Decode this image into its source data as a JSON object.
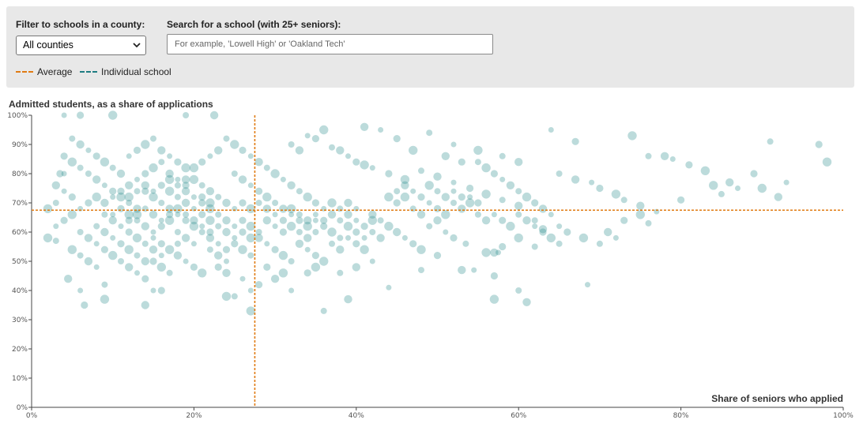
{
  "filters": {
    "county_label": "Filter to schools in a county:",
    "county_selected": "All counties",
    "search_label": "Search for a school (with 25+ seniors):",
    "search_placeholder": "For example, 'Lowell High' or 'Oakland Tech'",
    "search_value": ""
  },
  "legend": {
    "average": "Average",
    "individual": "Individual school"
  },
  "colors": {
    "average": "#e07b13",
    "individual": "#1e7c82",
    "dot": "#2e8f8f"
  },
  "chart_data": {
    "type": "scatter",
    "ylabel": "Admitted students, as a share of applications",
    "xlabel": "Share of seniors who applied",
    "xlim": [
      0,
      100
    ],
    "ylim": [
      0,
      100
    ],
    "x_ticks": [
      "0%",
      "20%",
      "40%",
      "60%",
      "80%",
      "100%"
    ],
    "y_ticks": [
      "0%",
      "10%",
      "20%",
      "30%",
      "40%",
      "50%",
      "60%",
      "70%",
      "80%",
      "90%",
      "100%"
    ],
    "average_x": 27.5,
    "average_y": 67.5,
    "points": [
      [
        4,
        100
      ],
      [
        6,
        100
      ],
      [
        10,
        100
      ],
      [
        19,
        100
      ],
      [
        22.5,
        100
      ],
      [
        4,
        80
      ],
      [
        3.5,
        80
      ],
      [
        2,
        58
      ],
      [
        3,
        57
      ],
      [
        4.5,
        44
      ],
      [
        6,
        40
      ],
      [
        6.5,
        35
      ],
      [
        9,
        37
      ],
      [
        9,
        42
      ],
      [
        14,
        35
      ],
      [
        15,
        40
      ],
      [
        16,
        40
      ],
      [
        27,
        33
      ],
      [
        36,
        33
      ],
      [
        39,
        37
      ],
      [
        44,
        41
      ],
      [
        57,
        45
      ],
      [
        57,
        37
      ],
      [
        60,
        40
      ],
      [
        61,
        36
      ],
      [
        68.5,
        42
      ],
      [
        29,
        48
      ],
      [
        31,
        46
      ],
      [
        48,
        47
      ],
      [
        53,
        47
      ],
      [
        54.5,
        47
      ],
      [
        50,
        52
      ],
      [
        56,
        53
      ],
      [
        53.5,
        56
      ],
      [
        57,
        53
      ],
      [
        57.5,
        53
      ],
      [
        58,
        55
      ],
      [
        60,
        58
      ],
      [
        62,
        55
      ],
      [
        41,
        96
      ],
      [
        43,
        95
      ],
      [
        45,
        92
      ],
      [
        47,
        88
      ],
      [
        49,
        94
      ],
      [
        51,
        86
      ],
      [
        52,
        90
      ],
      [
        53,
        84
      ],
      [
        55,
        88
      ],
      [
        58,
        86
      ],
      [
        60,
        84
      ],
      [
        42,
        82
      ],
      [
        44,
        80
      ],
      [
        46,
        78
      ],
      [
        48,
        81
      ],
      [
        50,
        79
      ],
      [
        52,
        77
      ],
      [
        54,
        75
      ],
      [
        56,
        73
      ],
      [
        58,
        71
      ],
      [
        60,
        69
      ],
      [
        34,
        93
      ],
      [
        35,
        92
      ],
      [
        36,
        95
      ],
      [
        37,
        89
      ],
      [
        38,
        88
      ],
      [
        39,
        86
      ],
      [
        40,
        84
      ],
      [
        41,
        83
      ],
      [
        32,
        90
      ],
      [
        33,
        88
      ],
      [
        64,
        95
      ],
      [
        67,
        91
      ],
      [
        74,
        93
      ],
      [
        76,
        86
      ],
      [
        78,
        86
      ],
      [
        79,
        85
      ],
      [
        81,
        83
      ],
      [
        83,
        81
      ],
      [
        65,
        80
      ],
      [
        67,
        78
      ],
      [
        69,
        77
      ],
      [
        70,
        75
      ],
      [
        72,
        73
      ],
      [
        73,
        71
      ],
      [
        75,
        69
      ],
      [
        77,
        67
      ],
      [
        80,
        71
      ],
      [
        84,
        76
      ],
      [
        85,
        73
      ],
      [
        86,
        77
      ],
      [
        87,
        75
      ],
      [
        89,
        80
      ],
      [
        90,
        75
      ],
      [
        91,
        91
      ],
      [
        92,
        72
      ],
      [
        93,
        77
      ],
      [
        97,
        90
      ],
      [
        98,
        84
      ],
      [
        62,
        64
      ],
      [
        63,
        61
      ],
      [
        65,
        62
      ],
      [
        66,
        60
      ],
      [
        68,
        58
      ],
      [
        70,
        56
      ],
      [
        71,
        60
      ],
      [
        72,
        58
      ],
      [
        73,
        64
      ],
      [
        75,
        66
      ],
      [
        76,
        63
      ],
      [
        63,
        68
      ],
      [
        64,
        66
      ],
      [
        62,
        70
      ],
      [
        61,
        72
      ],
      [
        60,
        74
      ],
      [
        59,
        76
      ],
      [
        58,
        78
      ],
      [
        57,
        80
      ],
      [
        56,
        82
      ],
      [
        55,
        84
      ],
      [
        45,
        60
      ],
      [
        46,
        58
      ],
      [
        47,
        56
      ],
      [
        48,
        54
      ],
      [
        49,
        62
      ],
      [
        50,
        64
      ],
      [
        51,
        60
      ],
      [
        52,
        58
      ],
      [
        44,
        62
      ],
      [
        43,
        64
      ],
      [
        42,
        66
      ],
      [
        41,
        58
      ],
      [
        40,
        60
      ],
      [
        39,
        62
      ],
      [
        38,
        64
      ],
      [
        37,
        66
      ],
      [
        36,
        68
      ],
      [
        35,
        70
      ],
      [
        34,
        72
      ],
      [
        33,
        74
      ],
      [
        32,
        76
      ],
      [
        31,
        78
      ],
      [
        45,
        70
      ],
      [
        46,
        72
      ],
      [
        47,
        68
      ],
      [
        48,
        66
      ],
      [
        49,
        70
      ],
      [
        50,
        68
      ],
      [
        51,
        66
      ],
      [
        52,
        70
      ],
      [
        53,
        68
      ],
      [
        54,
        72
      ],
      [
        55,
        70
      ],
      [
        30,
        80
      ],
      [
        29,
        82
      ],
      [
        28,
        84
      ],
      [
        27,
        86
      ],
      [
        26,
        88
      ],
      [
        25,
        90
      ],
      [
        24,
        92
      ],
      [
        23,
        88
      ],
      [
        22,
        86
      ],
      [
        21,
        84
      ],
      [
        20,
        82
      ],
      [
        5,
        92
      ],
      [
        6,
        90
      ],
      [
        7,
        88
      ],
      [
        8,
        86
      ],
      [
        9,
        84
      ],
      [
        10,
        82
      ],
      [
        11,
        80
      ],
      [
        12,
        86
      ],
      [
        13,
        88
      ],
      [
        14,
        90
      ],
      [
        15,
        92
      ],
      [
        16,
        88
      ],
      [
        17,
        86
      ],
      [
        18,
        84
      ],
      [
        19,
        82
      ],
      [
        7,
        80
      ],
      [
        8,
        78
      ],
      [
        9,
        76
      ],
      [
        10,
        74
      ],
      [
        11,
        72
      ],
      [
        12,
        70
      ],
      [
        13,
        68
      ],
      [
        3,
        62
      ],
      [
        4,
        64
      ],
      [
        5,
        66
      ],
      [
        6,
        60
      ],
      [
        7,
        58
      ],
      [
        8,
        56
      ],
      [
        9,
        54
      ],
      [
        10,
        52
      ],
      [
        11,
        50
      ],
      [
        12,
        48
      ],
      [
        13,
        46
      ],
      [
        14,
        44
      ],
      [
        5,
        54
      ],
      [
        6,
        52
      ],
      [
        7,
        50
      ],
      [
        8,
        48
      ],
      [
        15,
        50
      ],
      [
        16,
        48
      ],
      [
        17,
        46
      ],
      [
        18,
        52
      ],
      [
        19,
        50
      ],
      [
        20,
        48
      ],
      [
        21,
        46
      ],
      [
        22,
        54
      ],
      [
        23,
        52
      ],
      [
        24,
        50
      ],
      [
        25,
        56
      ],
      [
        26,
        54
      ],
      [
        27,
        52
      ],
      [
        28,
        58
      ],
      [
        29,
        56
      ],
      [
        30,
        54
      ],
      [
        31,
        52
      ],
      [
        32,
        50
      ],
      [
        33,
        56
      ],
      [
        34,
        54
      ],
      [
        35,
        52
      ],
      [
        36,
        50
      ],
      [
        37,
        56
      ],
      [
        38,
        54
      ],
      [
        39,
        58
      ],
      [
        40,
        56
      ],
      [
        41,
        54
      ],
      [
        42,
        60
      ],
      [
        43,
        58
      ],
      [
        6,
        68
      ],
      [
        7,
        70
      ],
      [
        8,
        72
      ],
      [
        9,
        66
      ],
      [
        10,
        64
      ],
      [
        11,
        62
      ],
      [
        12,
        60
      ],
      [
        13,
        58
      ],
      [
        14,
        56
      ],
      [
        15,
        54
      ],
      [
        16,
        52
      ],
      [
        14,
        74
      ],
      [
        15,
        72
      ],
      [
        16,
        70
      ],
      [
        17,
        68
      ],
      [
        18,
        66
      ],
      [
        19,
        64
      ],
      [
        20,
        62
      ],
      [
        21,
        60
      ],
      [
        22,
        58
      ],
      [
        23,
        56
      ],
      [
        24,
        54
      ],
      [
        17,
        78
      ],
      [
        18,
        76
      ],
      [
        19,
        74
      ],
      [
        20,
        72
      ],
      [
        21,
        70
      ],
      [
        22,
        68
      ],
      [
        23,
        66
      ],
      [
        24,
        64
      ],
      [
        25,
        62
      ],
      [
        26,
        60
      ],
      [
        27,
        58
      ],
      [
        25,
        80
      ],
      [
        26,
        78
      ],
      [
        27,
        76
      ],
      [
        28,
        74
      ],
      [
        29,
        72
      ],
      [
        30,
        70
      ],
      [
        31,
        68
      ],
      [
        32,
        66
      ],
      [
        33,
        64
      ],
      [
        34,
        62
      ],
      [
        35,
        60
      ],
      [
        12,
        76
      ],
      [
        13,
        78
      ],
      [
        14,
        80
      ],
      [
        15,
        82
      ],
      [
        16,
        84
      ],
      [
        17,
        80
      ],
      [
        18,
        78
      ],
      [
        19,
        76
      ],
      [
        20,
        78
      ],
      [
        21,
        76
      ],
      [
        22,
        74
      ],
      [
        10,
        66
      ],
      [
        11,
        68
      ],
      [
        12,
        66
      ],
      [
        13,
        64
      ],
      [
        14,
        62
      ],
      [
        15,
        60
      ],
      [
        16,
        62
      ],
      [
        17,
        64
      ],
      [
        18,
        60
      ],
      [
        19,
        58
      ],
      [
        20,
        56
      ],
      [
        21,
        66
      ],
      [
        22,
        64
      ],
      [
        23,
        62
      ],
      [
        24,
        60
      ],
      [
        25,
        58
      ],
      [
        26,
        64
      ],
      [
        27,
        62
      ],
      [
        28,
        60
      ],
      [
        29,
        64
      ],
      [
        30,
        62
      ],
      [
        31,
        60
      ],
      [
        32,
        62
      ],
      [
        33,
        60
      ],
      [
        34,
        58
      ],
      [
        35,
        64
      ],
      [
        36,
        62
      ],
      [
        37,
        60
      ],
      [
        38,
        58
      ],
      [
        39,
        66
      ],
      [
        40,
        64
      ],
      [
        41,
        62
      ],
      [
        42,
        64
      ],
      [
        8,
        62
      ],
      [
        9,
        60
      ],
      [
        10,
        58
      ],
      [
        11,
        56
      ],
      [
        12,
        54
      ],
      [
        13,
        52
      ],
      [
        14,
        50
      ],
      [
        15,
        58
      ],
      [
        16,
        56
      ],
      [
        17,
        54
      ],
      [
        18,
        56
      ],
      [
        19,
        70
      ],
      [
        20,
        68
      ],
      [
        21,
        72
      ],
      [
        22,
        70
      ],
      [
        23,
        72
      ],
      [
        24,
        70
      ],
      [
        25,
        68
      ],
      [
        26,
        70
      ],
      [
        27,
        68
      ],
      [
        28,
        70
      ],
      [
        29,
        68
      ],
      [
        30,
        66
      ],
      [
        31,
        64
      ],
      [
        32,
        68
      ],
      [
        33,
        66
      ],
      [
        34,
        64
      ],
      [
        35,
        66
      ],
      [
        36,
        64
      ],
      [
        37,
        70
      ],
      [
        38,
        68
      ],
      [
        39,
        70
      ],
      [
        40,
        68
      ],
      [
        12,
        64
      ],
      [
        13,
        66
      ],
      [
        14,
        68
      ],
      [
        15,
        66
      ],
      [
        16,
        64
      ],
      [
        17,
        66
      ],
      [
        18,
        68
      ],
      [
        19,
        66
      ],
      [
        20,
        64
      ],
      [
        21,
        62
      ],
      [
        22,
        60
      ],
      [
        44,
        72
      ],
      [
        45,
        74
      ],
      [
        46,
        76
      ],
      [
        47,
        74
      ],
      [
        48,
        72
      ],
      [
        49,
        76
      ],
      [
        50,
        74
      ],
      [
        51,
        72
      ],
      [
        52,
        74
      ],
      [
        53,
        72
      ],
      [
        54,
        70
      ],
      [
        55,
        66
      ],
      [
        56,
        64
      ],
      [
        57,
        66
      ],
      [
        58,
        64
      ],
      [
        59,
        62
      ],
      [
        60,
        66
      ],
      [
        61,
        64
      ],
      [
        62,
        62
      ],
      [
        63,
        60
      ],
      [
        64,
        58
      ],
      [
        65,
        56
      ],
      [
        9,
        70
      ],
      [
        10,
        72
      ],
      [
        11,
        74
      ],
      [
        12,
        72
      ],
      [
        13,
        74
      ],
      [
        14,
        76
      ],
      [
        15,
        74
      ],
      [
        16,
        76
      ],
      [
        17,
        74
      ],
      [
        18,
        72
      ],
      [
        19,
        78
      ],
      [
        27,
        40
      ],
      [
        28,
        42
      ],
      [
        24,
        38
      ],
      [
        25,
        38
      ],
      [
        30,
        44
      ],
      [
        32,
        40
      ],
      [
        34,
        46
      ],
      [
        35,
        48
      ],
      [
        38,
        46
      ],
      [
        40,
        48
      ],
      [
        42,
        50
      ],
      [
        4,
        86
      ],
      [
        5,
        84
      ],
      [
        6,
        82
      ],
      [
        3,
        76
      ],
      [
        4,
        74
      ],
      [
        5,
        72
      ],
      [
        2,
        68
      ],
      [
        3,
        70
      ],
      [
        24,
        46
      ],
      [
        26,
        44
      ],
      [
        23,
        48
      ]
    ]
  }
}
